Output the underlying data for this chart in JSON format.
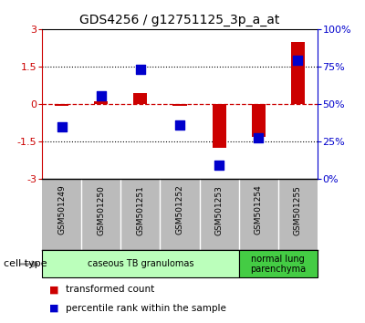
{
  "title": "GDS4256 / g12751125_3p_a_at",
  "samples": [
    "GSM501249",
    "GSM501250",
    "GSM501251",
    "GSM501252",
    "GSM501253",
    "GSM501254",
    "GSM501255"
  ],
  "transformed_count": [
    -0.05,
    0.1,
    0.45,
    -0.05,
    -1.75,
    -1.3,
    2.5
  ],
  "percentile_rank_scaled": [
    -0.9,
    0.35,
    1.4,
    -0.85,
    -2.45,
    -1.35,
    1.75
  ],
  "ylim": [
    -3,
    3
  ],
  "yticks": [
    -3,
    -1.5,
    0,
    1.5,
    3
  ],
  "ytick_labels_left": [
    "-3",
    "-1.5",
    "0",
    "1.5",
    "3"
  ],
  "right_ytick_labels": [
    "0%",
    "25%",
    "50%",
    "75%",
    "100%"
  ],
  "bar_color": "#cc0000",
  "dot_color": "#0000cc",
  "zero_line_color": "#cc0000",
  "groups": [
    {
      "label": "caseous TB granulomas",
      "samples_range": [
        0,
        4
      ],
      "color": "#bbffbb"
    },
    {
      "label": "normal lung\nparenchyma",
      "samples_range": [
        5,
        6
      ],
      "color": "#44cc44"
    }
  ],
  "cell_type_label": "cell type",
  "legend_items": [
    {
      "color": "#cc0000",
      "label": "transformed count"
    },
    {
      "color": "#0000cc",
      "label": "percentile rank within the sample"
    }
  ],
  "bar_width": 0.35,
  "dot_size": 55,
  "background_color": "#ffffff",
  "tick_area_bg": "#bbbbbb"
}
